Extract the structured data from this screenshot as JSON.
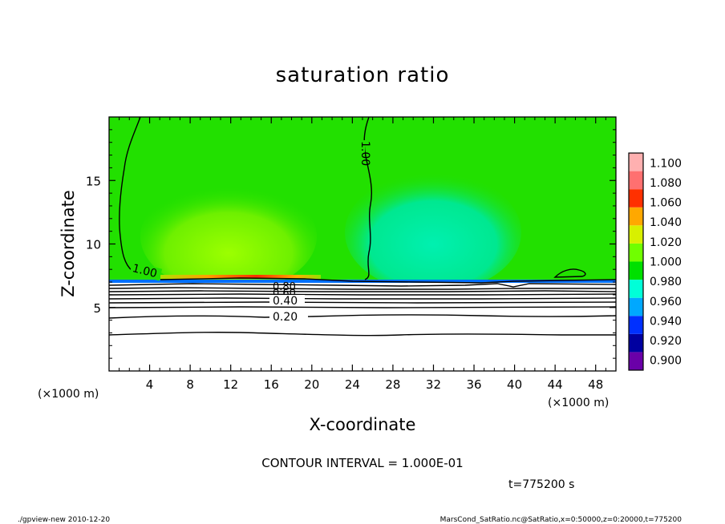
{
  "chart_data": {
    "type": "heatmap",
    "title": "saturation ratio",
    "xlabel": "X-coordinate",
    "ylabel": "Z-coordinate",
    "x_unit_left": "(×1000 m)",
    "x_unit_right": "(×1000 m)",
    "xlim": [
      0,
      50
    ],
    "ylim": [
      0,
      20
    ],
    "xticks": [
      4,
      8,
      12,
      16,
      20,
      24,
      28,
      32,
      36,
      40,
      44,
      48
    ],
    "yticks": [
      5,
      10,
      15
    ],
    "colorbar": {
      "levels": [
        "0.900",
        "0.920",
        "0.940",
        "0.960",
        "0.980",
        "1.000",
        "1.020",
        "1.040",
        "1.060",
        "1.080",
        "1.100"
      ],
      "colors": [
        "#6a00a8",
        "#0000a0",
        "#0030ff",
        "#00a8ff",
        "#00ffd8",
        "#00e000",
        "#70ff00",
        "#d8f000",
        "#ffa800",
        "#ff3000",
        "#ff7070",
        "#ffb0b0"
      ]
    },
    "field": {
      "background_level": "1.000",
      "interface_height": 7,
      "warm_patch": {
        "x_range": [
          5,
          22
        ],
        "level": "1.020",
        "max_level": "1.080"
      },
      "cool_patch": {
        "x_range": [
          25,
          44
        ],
        "level": "0.980"
      }
    },
    "contours": [
      {
        "label": "1.00",
        "value": 1.0
      },
      {
        "label": "0.80",
        "value": 0.8
      },
      {
        "label": "0.60",
        "value": 0.6
      },
      {
        "label": "0.40",
        "value": 0.4
      },
      {
        "label": "0.20",
        "value": 0.2
      }
    ],
    "contour_interval_text": "CONTOUR INTERVAL = 1.000E-01",
    "time_text": "t=775200 s",
    "footer_left": "./gpview-new  2010-12-20",
    "footer_right": "MarsCond_SatRatio.nc@SatRatio,x=0:50000,z=0:20000,t=775200"
  }
}
